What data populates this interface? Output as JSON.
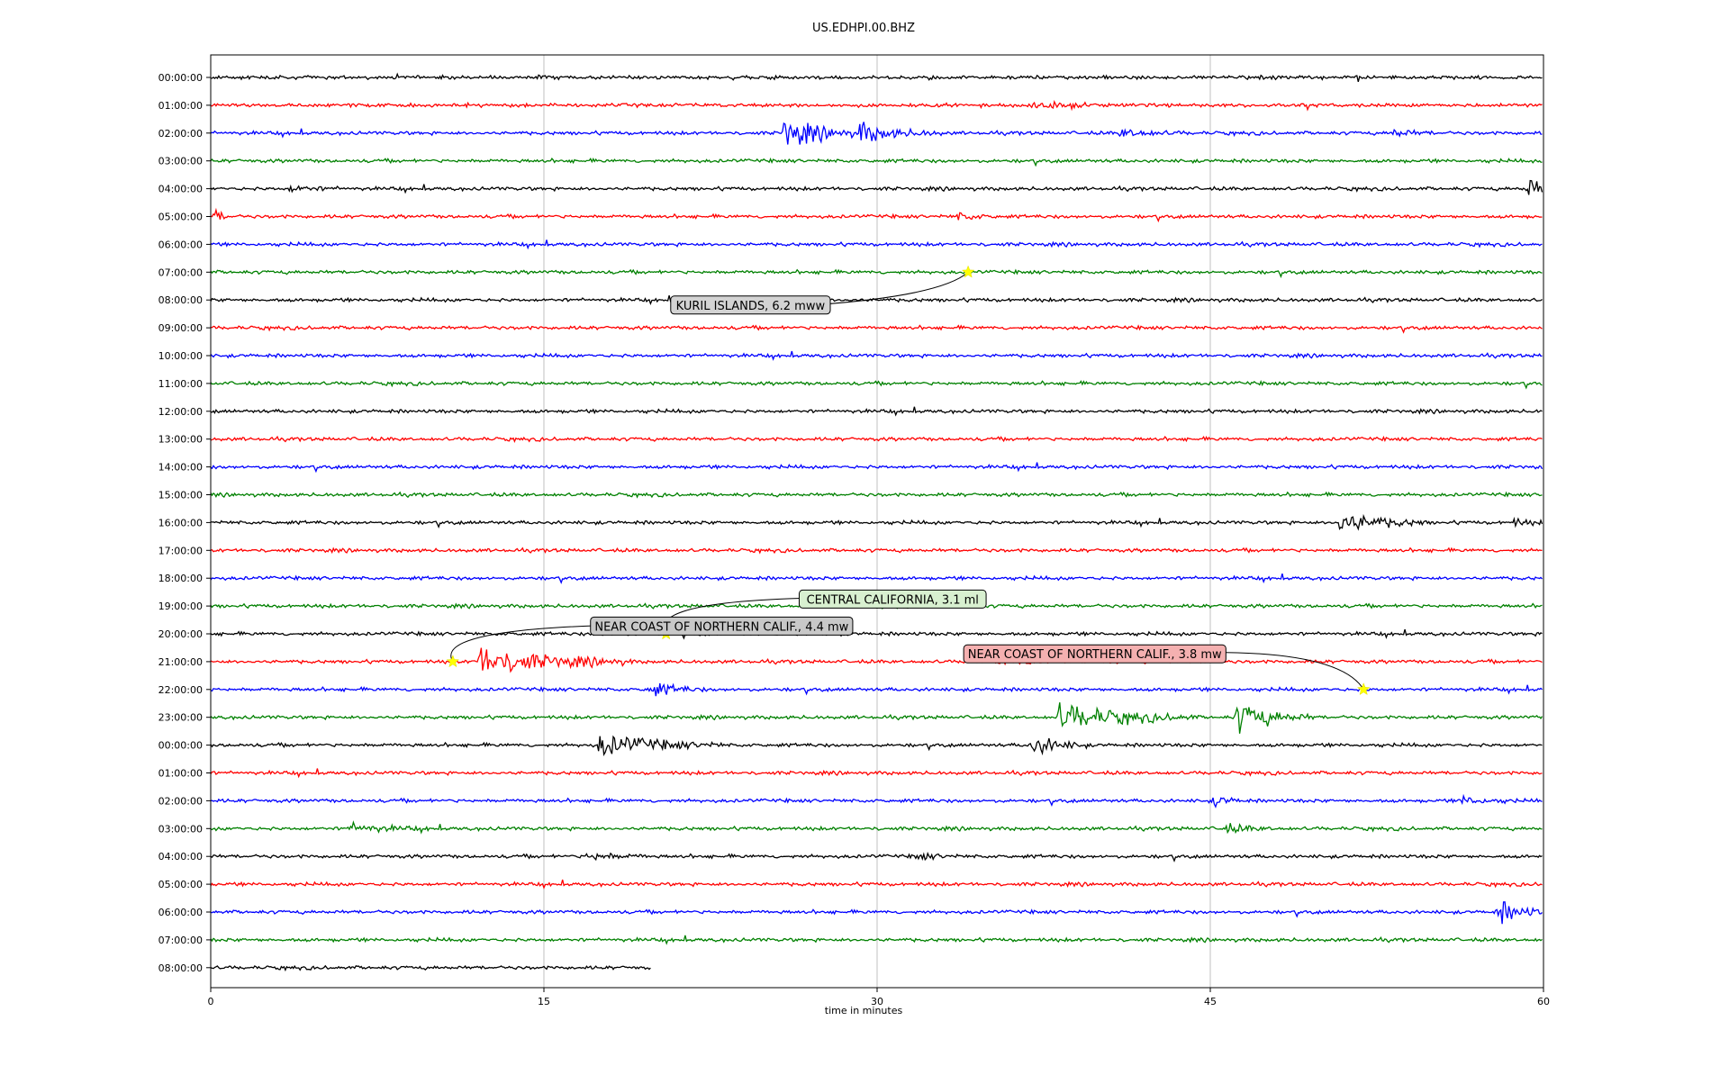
{
  "chart_data": {
    "type": "line",
    "title": "US.EDHPI.00.BHZ",
    "xlabel": "time in minutes",
    "ylabel": "",
    "xlim": [
      0,
      60
    ],
    "x_ticks": [
      0,
      15,
      30,
      45,
      60
    ],
    "grid": "vertical",
    "trace_colors": [
      "#000000",
      "#ff0000",
      "#0000ff",
      "#008000"
    ],
    "row_labels": [
      "00:00:00",
      "01:00:00",
      "02:00:00",
      "03:00:00",
      "04:00:00",
      "05:00:00",
      "06:00:00",
      "07:00:00",
      "08:00:00",
      "09:00:00",
      "10:00:00",
      "11:00:00",
      "12:00:00",
      "13:00:00",
      "14:00:00",
      "15:00:00",
      "16:00:00",
      "17:00:00",
      "18:00:00",
      "19:00:00",
      "20:00:00",
      "21:00:00",
      "22:00:00",
      "23:00:00",
      "00:00:00",
      "01:00:00",
      "02:00:00",
      "03:00:00",
      "04:00:00",
      "05:00:00",
      "06:00:00",
      "07:00:00",
      "08:00:00"
    ],
    "last_row_end_minute": 19.8,
    "bursts": [
      {
        "row": 1,
        "minute": 37.0,
        "amp": 8,
        "dur": 1.2
      },
      {
        "row": 2,
        "minute": 25.8,
        "amp": 28,
        "dur": 1.5
      },
      {
        "row": 2,
        "minute": 29.2,
        "amp": 18,
        "dur": 1.5
      },
      {
        "row": 2,
        "minute": 41.0,
        "amp": 8,
        "dur": 1.2
      },
      {
        "row": 2,
        "minute": 53.2,
        "amp": 8,
        "dur": 0.8
      },
      {
        "row": 4,
        "minute": 3.6,
        "amp": 6,
        "dur": 1.0
      },
      {
        "row": 4,
        "minute": 59.3,
        "amp": 22,
        "dur": 0.6
      },
      {
        "row": 5,
        "minute": 0.2,
        "amp": 14,
        "dur": 0.3
      },
      {
        "row": 5,
        "minute": 33.6,
        "amp": 7,
        "dur": 0.8
      },
      {
        "row": 16,
        "minute": 50.8,
        "amp": 24,
        "dur": 1.6
      },
      {
        "row": 16,
        "minute": 58.7,
        "amp": 6,
        "dur": 0.6
      },
      {
        "row": 21,
        "minute": 12.0,
        "amp": 30,
        "dur": 2.8
      },
      {
        "row": 22,
        "minute": 19.8,
        "amp": 14,
        "dur": 1.0
      },
      {
        "row": 23,
        "minute": 38.2,
        "amp": 26,
        "dur": 2.5
      },
      {
        "row": 23,
        "minute": 46.2,
        "amp": 28,
        "dur": 1.4
      },
      {
        "row": 24,
        "minute": 17.5,
        "amp": 22,
        "dur": 2.2
      },
      {
        "row": 24,
        "minute": 37.0,
        "amp": 22,
        "dur": 1.0
      },
      {
        "row": 26,
        "minute": 45.2,
        "amp": 10,
        "dur": 0.6
      },
      {
        "row": 26,
        "minute": 56.3,
        "amp": 8,
        "dur": 1.0
      },
      {
        "row": 27,
        "minute": 6.3,
        "amp": 8,
        "dur": 1.5
      },
      {
        "row": 27,
        "minute": 45.6,
        "amp": 8,
        "dur": 1.0
      },
      {
        "row": 28,
        "minute": 17.0,
        "amp": 8,
        "dur": 1.2
      },
      {
        "row": 28,
        "minute": 31.8,
        "amp": 6,
        "dur": 0.8
      },
      {
        "row": 30,
        "minute": 58.0,
        "amp": 22,
        "dur": 1.0
      }
    ],
    "events": [
      {
        "label": "KURIL ISLANDS, 6.2 mww",
        "row": 7,
        "minute": 34.1,
        "box_color": "#d3d3d3",
        "label_minute": 24.3,
        "label_row": 8.18
      },
      {
        "label": "CENTRAL CALIFORNIA, 3.1 ml",
        "row": 20,
        "minute": 20.5,
        "box_color": "#d8f0d0",
        "label_minute": 30.7,
        "label_row": 18.75
      },
      {
        "label": "NEAR COAST OF NORTHERN CALIF., 4.4 mw",
        "row": 21,
        "minute": 10.9,
        "box_color": "#c8c8c8",
        "label_minute": 23.0,
        "label_row": 19.72
      },
      {
        "label": "NEAR COAST OF NORTHERN CALIF., 3.8 mw",
        "row": 22,
        "minute": 51.9,
        "box_color": "#f4b0b0",
        "label_minute": 39.8,
        "label_row": 20.72
      }
    ]
  }
}
